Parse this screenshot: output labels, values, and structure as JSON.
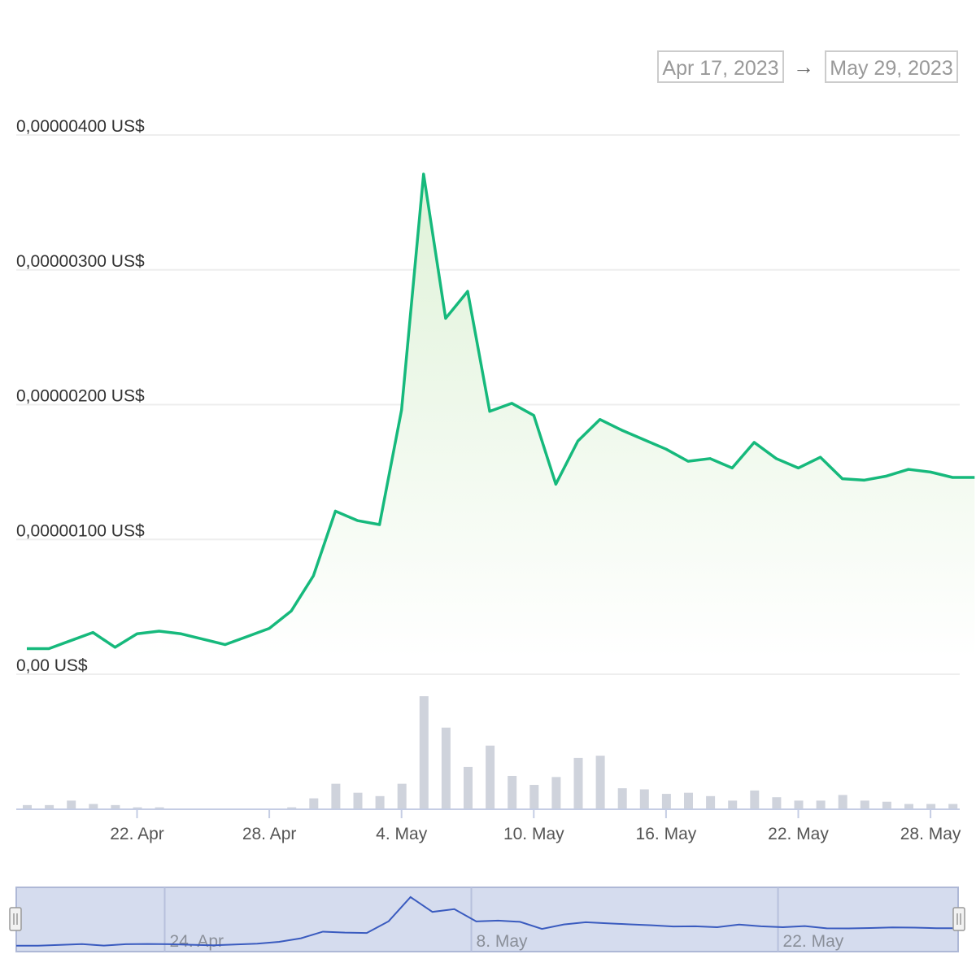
{
  "range": {
    "from": "Apr 17, 2023",
    "arrow": "→",
    "to": "May 29, 2023"
  },
  "colors": {
    "price_line": "#16b97c",
    "area_top": "#dff2d8",
    "volume_bar": "#cfd3dc",
    "grid": "#eeeeee",
    "navigator_fill": "#d5dcee",
    "navigator_line": "#3a5bbf"
  },
  "chart_data": [
    {
      "type": "area",
      "name": "price",
      "ytick_labels": [
        "0,00 US$",
        "0,00000100 US$",
        "0,00000200 US$",
        "0,00000300 US$",
        "0,00000400 US$"
      ],
      "yticks": [
        0,
        1e-06,
        2e-06,
        3e-06,
        4e-06
      ],
      "ylim": [
        0,
        4e-06
      ],
      "grid": true,
      "x": [
        "2023-04-17",
        "2023-04-18",
        "2023-04-19",
        "2023-04-20",
        "2023-04-21",
        "2023-04-22",
        "2023-04-23",
        "2023-04-24",
        "2023-04-25",
        "2023-04-26",
        "2023-04-27",
        "2023-04-28",
        "2023-04-29",
        "2023-04-30",
        "2023-05-01",
        "2023-05-02",
        "2023-05-03",
        "2023-05-04",
        "2023-05-05",
        "2023-05-06",
        "2023-05-07",
        "2023-05-08",
        "2023-05-09",
        "2023-05-10",
        "2023-05-11",
        "2023-05-12",
        "2023-05-13",
        "2023-05-14",
        "2023-05-15",
        "2023-05-16",
        "2023-05-17",
        "2023-05-18",
        "2023-05-19",
        "2023-05-20",
        "2023-05-21",
        "2023-05-22",
        "2023-05-23",
        "2023-05-24",
        "2023-05-25",
        "2023-05-26",
        "2023-05-27",
        "2023-05-28",
        "2023-05-29",
        "2023-05-30"
      ],
      "values": [
        1.9e-07,
        1.9e-07,
        2.5e-07,
        3.1e-07,
        2e-07,
        3e-07,
        3.2e-07,
        3e-07,
        2.6e-07,
        2.2e-07,
        2.8e-07,
        3.4e-07,
        4.7e-07,
        7.3e-07,
        1.21e-06,
        1.14e-06,
        1.11e-06,
        1.96e-06,
        3.71e-06,
        2.64e-06,
        2.84e-06,
        1.95e-06,
        2.01e-06,
        1.92e-06,
        1.41e-06,
        1.73e-06,
        1.89e-06,
        1.81e-06,
        1.74e-06,
        1.67e-06,
        1.58e-06,
        1.6e-06,
        1.53e-06,
        1.72e-06,
        1.6e-06,
        1.53e-06,
        1.61e-06,
        1.45e-06,
        1.44e-06,
        1.47e-06,
        1.52e-06,
        1.5e-06,
        1.46e-06,
        1.46e-06
      ]
    },
    {
      "type": "bar",
      "name": "volume",
      "x": [
        "2023-04-17",
        "2023-04-18",
        "2023-04-19",
        "2023-04-20",
        "2023-04-21",
        "2023-04-22",
        "2023-04-23",
        "2023-04-24",
        "2023-04-25",
        "2023-04-26",
        "2023-04-27",
        "2023-04-28",
        "2023-04-29",
        "2023-04-30",
        "2023-05-01",
        "2023-05-02",
        "2023-05-03",
        "2023-05-04",
        "2023-05-05",
        "2023-05-06",
        "2023-05-07",
        "2023-05-08",
        "2023-05-09",
        "2023-05-10",
        "2023-05-11",
        "2023-05-12",
        "2023-05-13",
        "2023-05-14",
        "2023-05-15",
        "2023-05-16",
        "2023-05-17",
        "2023-05-18",
        "2023-05-19",
        "2023-05-20",
        "2023-05-21",
        "2023-05-22",
        "2023-05-23",
        "2023-05-24",
        "2023-05-25",
        "2023-05-26",
        "2023-05-27",
        "2023-05-28",
        "2023-05-29",
        "2023-05-30"
      ],
      "values": [
        3,
        3,
        7,
        4,
        3,
        1,
        1,
        0,
        0,
        0,
        0,
        0,
        1,
        9,
        22,
        14,
        11,
        22,
        100,
        72,
        37,
        56,
        29,
        21,
        28,
        45,
        47,
        18,
        17,
        13,
        14,
        11,
        7,
        16,
        10,
        7,
        7,
        12,
        7,
        6,
        4,
        4,
        4,
        0
      ],
      "xtick_labels": [
        "22. Apr",
        "28. Apr",
        "4. May",
        "10. May",
        "16. May",
        "22. May",
        "28. May"
      ],
      "xticks": [
        "2023-04-22",
        "2023-04-28",
        "2023-05-04",
        "2023-05-10",
        "2023-05-16",
        "2023-05-22",
        "2023-05-28"
      ]
    },
    {
      "type": "line",
      "name": "navigator",
      "xtick_labels": [
        "24. Apr",
        "8. May",
        "22. May"
      ],
      "xticks": [
        "2023-04-24",
        "2023-05-08",
        "2023-05-22"
      ]
    }
  ]
}
